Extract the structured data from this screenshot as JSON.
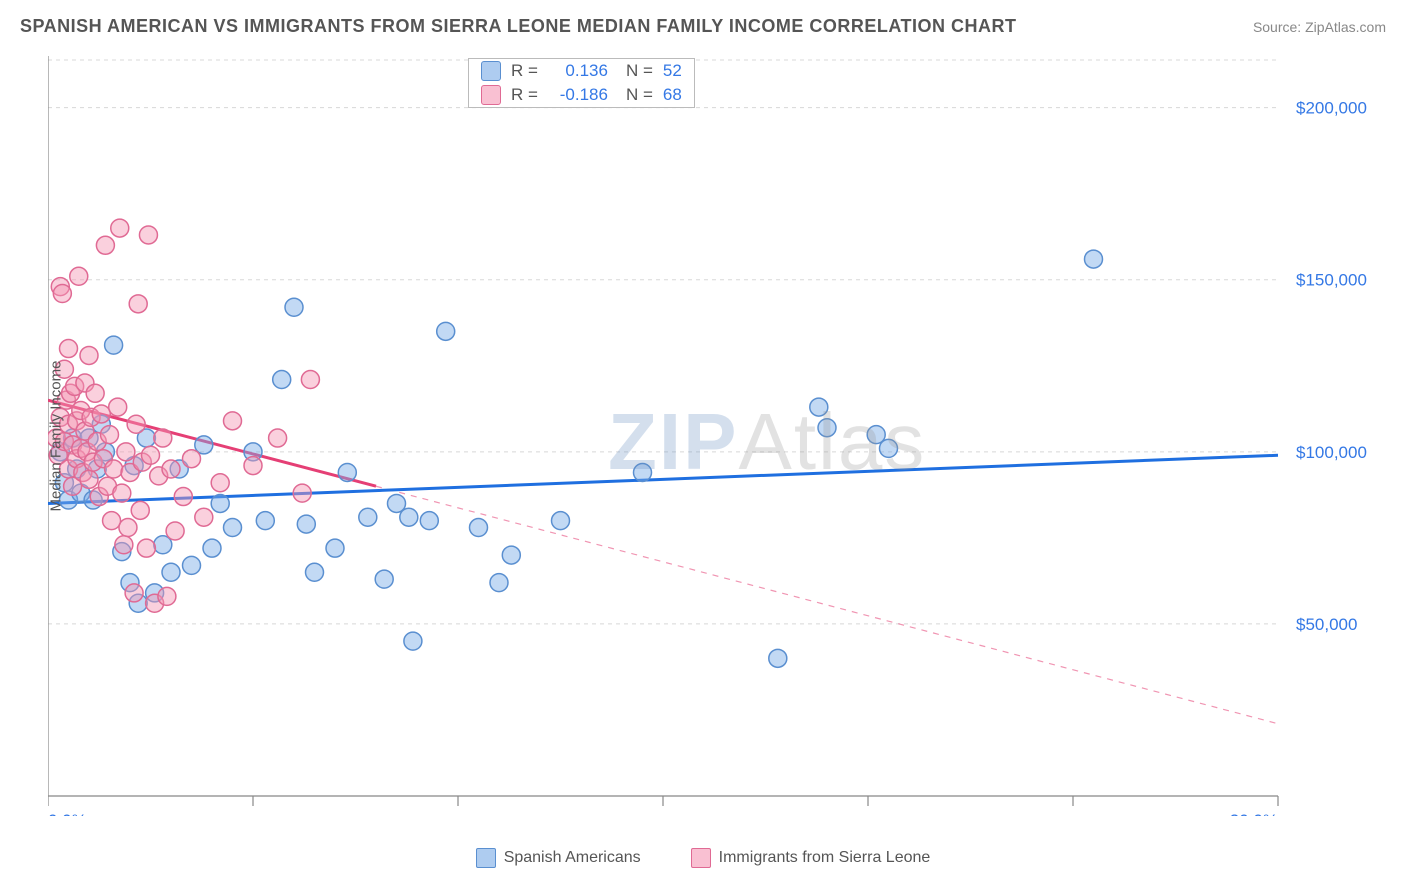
{
  "title": "SPANISH AMERICAN VS IMMIGRANTS FROM SIERRA LEONE MEDIAN FAMILY INCOME CORRELATION CHART",
  "source": "Source: ZipAtlas.com",
  "y_axis_label": "Median Family Income",
  "watermark": {
    "part1": "ZIP",
    "part2": "Atlas"
  },
  "chart": {
    "type": "scatter",
    "background_color": "#ffffff",
    "grid_color": "#d8d8d8",
    "axis_color": "#888888",
    "tick_color": "#888888",
    "tick_label_color": "#3478e5",
    "xlim": [
      0,
      30
    ],
    "ylim": [
      0,
      215000
    ],
    "x_ticks": [
      0,
      5,
      10,
      15,
      20,
      25,
      30
    ],
    "x_tick_labels": {
      "0": "0.0%",
      "30": "30.0%"
    },
    "y_gridlines": [
      50000,
      100000,
      150000,
      200000
    ],
    "y_tick_labels": {
      "50000": "$50,000",
      "100000": "$100,000",
      "150000": "$150,000",
      "200000": "$200,000"
    },
    "marker_radius": 9,
    "marker_stroke_width": 1.5,
    "trend_line_width": 3,
    "dashed_line_width": 1.2
  },
  "series_a": {
    "label": "Spanish Americans",
    "fill": "rgba(120,170,230,0.45)",
    "stroke": "#5a8fd0",
    "swatch_fill": "rgba(120,170,230,0.6)",
    "swatch_border": "#5a8fd0",
    "trend_color": "#1f6fe0",
    "r": "0.136",
    "n": "52",
    "trend": {
      "x1": 0,
      "y1": 85000,
      "x2": 30,
      "y2": 99000
    },
    "points": [
      [
        0.3,
        100000
      ],
      [
        0.4,
        91000
      ],
      [
        0.5,
        86000
      ],
      [
        0.6,
        104000
      ],
      [
        0.7,
        95000
      ],
      [
        0.8,
        88000
      ],
      [
        1.0,
        104000
      ],
      [
        1.1,
        86000
      ],
      [
        1.2,
        95000
      ],
      [
        1.3,
        108000
      ],
      [
        1.4,
        100000
      ],
      [
        1.6,
        131000
      ],
      [
        1.8,
        71000
      ],
      [
        2.0,
        62000
      ],
      [
        2.1,
        96000
      ],
      [
        2.2,
        56000
      ],
      [
        2.4,
        104000
      ],
      [
        2.6,
        59000
      ],
      [
        2.8,
        73000
      ],
      [
        3.0,
        65000
      ],
      [
        3.2,
        95000
      ],
      [
        3.5,
        67000
      ],
      [
        3.8,
        102000
      ],
      [
        4.0,
        72000
      ],
      [
        4.2,
        85000
      ],
      [
        4.5,
        78000
      ],
      [
        5.0,
        100000
      ],
      [
        5.3,
        80000
      ],
      [
        5.7,
        121000
      ],
      [
        6.0,
        142000
      ],
      [
        6.3,
        79000
      ],
      [
        6.5,
        65000
      ],
      [
        7.0,
        72000
      ],
      [
        7.3,
        94000
      ],
      [
        7.8,
        81000
      ],
      [
        8.2,
        63000
      ],
      [
        8.5,
        85000
      ],
      [
        8.8,
        81000
      ],
      [
        8.9,
        45000
      ],
      [
        9.3,
        80000
      ],
      [
        9.7,
        135000
      ],
      [
        10.5,
        78000
      ],
      [
        11.0,
        62000
      ],
      [
        11.3,
        70000
      ],
      [
        12.5,
        80000
      ],
      [
        14.5,
        94000
      ],
      [
        17.8,
        40000
      ],
      [
        18.8,
        113000
      ],
      [
        19.0,
        107000
      ],
      [
        20.2,
        105000
      ],
      [
        20.5,
        101000
      ],
      [
        25.5,
        156000
      ]
    ]
  },
  "series_b": {
    "label": "Immigrants from Sierra Leone",
    "fill": "rgba(245,150,180,0.45)",
    "stroke": "#e06a94",
    "swatch_fill": "rgba(245,150,180,0.6)",
    "swatch_border": "#e06a94",
    "trend_color": "#e53f75",
    "r": "-0.186",
    "n": "68",
    "trend_solid": {
      "x1": 0,
      "y1": 115000,
      "x2": 8,
      "y2": 90000
    },
    "trend_dashed": {
      "x1": 8,
      "y1": 90000,
      "x2": 30,
      "y2": 21000
    },
    "points": [
      [
        0.2,
        104000
      ],
      [
        0.25,
        99000
      ],
      [
        0.3,
        110000
      ],
      [
        0.3,
        148000
      ],
      [
        0.35,
        146000
      ],
      [
        0.4,
        124000
      ],
      [
        0.4,
        103000
      ],
      [
        0.45,
        115000
      ],
      [
        0.5,
        108000
      ],
      [
        0.5,
        130000
      ],
      [
        0.5,
        95000
      ],
      [
        0.55,
        117000
      ],
      [
        0.6,
        102000
      ],
      [
        0.6,
        90000
      ],
      [
        0.65,
        119000
      ],
      [
        0.7,
        98000
      ],
      [
        0.7,
        109000
      ],
      [
        0.75,
        151000
      ],
      [
        0.8,
        101000
      ],
      [
        0.8,
        112000
      ],
      [
        0.85,
        94000
      ],
      [
        0.9,
        106000
      ],
      [
        0.9,
        120000
      ],
      [
        0.95,
        100000
      ],
      [
        1.0,
        128000
      ],
      [
        1.0,
        92000
      ],
      [
        1.05,
        110000
      ],
      [
        1.1,
        97000
      ],
      [
        1.15,
        117000
      ],
      [
        1.2,
        103000
      ],
      [
        1.25,
        87000
      ],
      [
        1.3,
        111000
      ],
      [
        1.35,
        98000
      ],
      [
        1.4,
        160000
      ],
      [
        1.45,
        90000
      ],
      [
        1.5,
        105000
      ],
      [
        1.55,
        80000
      ],
      [
        1.6,
        95000
      ],
      [
        1.7,
        113000
      ],
      [
        1.75,
        165000
      ],
      [
        1.8,
        88000
      ],
      [
        1.85,
        73000
      ],
      [
        1.9,
        100000
      ],
      [
        1.95,
        78000
      ],
      [
        2.0,
        94000
      ],
      [
        2.1,
        59000
      ],
      [
        2.15,
        108000
      ],
      [
        2.2,
        143000
      ],
      [
        2.25,
        83000
      ],
      [
        2.3,
        97000
      ],
      [
        2.4,
        72000
      ],
      [
        2.45,
        163000
      ],
      [
        2.5,
        99000
      ],
      [
        2.6,
        56000
      ],
      [
        2.7,
        93000
      ],
      [
        2.8,
        104000
      ],
      [
        2.9,
        58000
      ],
      [
        3.0,
        95000
      ],
      [
        3.1,
        77000
      ],
      [
        3.3,
        87000
      ],
      [
        3.5,
        98000
      ],
      [
        3.8,
        81000
      ],
      [
        4.2,
        91000
      ],
      [
        4.5,
        109000
      ],
      [
        5.0,
        96000
      ],
      [
        5.6,
        104000
      ],
      [
        6.2,
        88000
      ],
      [
        6.4,
        121000
      ]
    ]
  },
  "corr_box": {
    "label_r": "R =",
    "label_n": "N ="
  }
}
